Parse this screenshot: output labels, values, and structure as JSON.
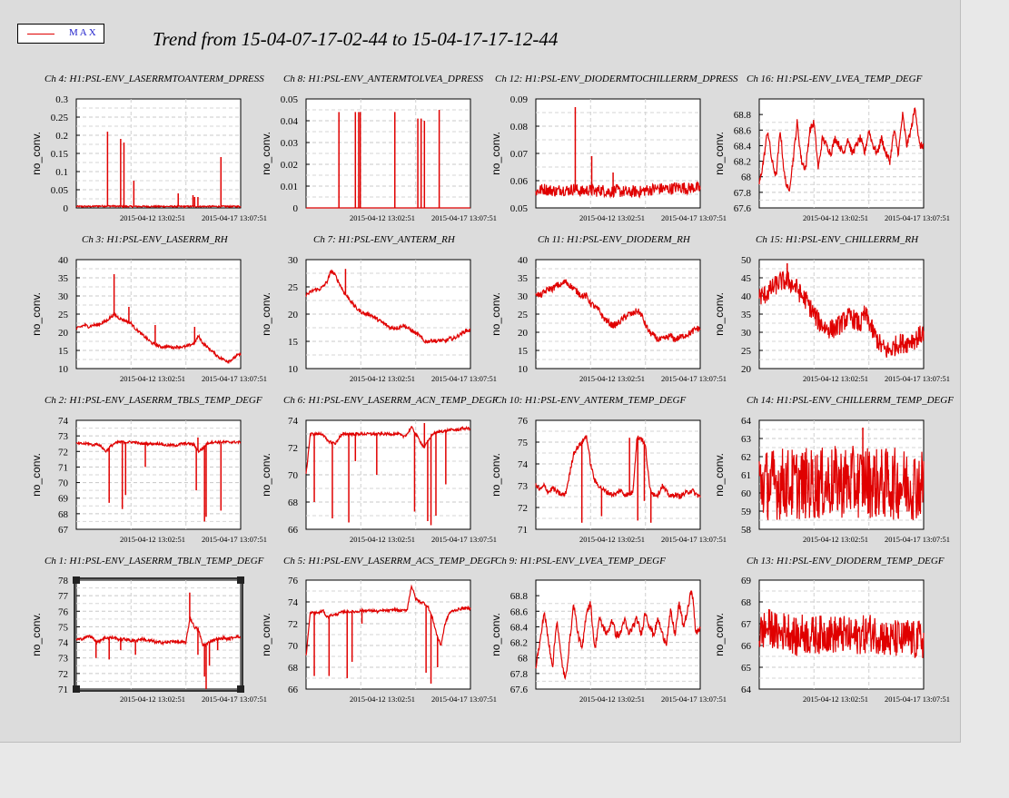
{
  "legend": {
    "label": "MAX",
    "color": "#e00000"
  },
  "title": "Trend from 15-04-07-17-02-44 to 15-04-17-17-12-44",
  "series_color": "#e00000",
  "chart_data": [
    {
      "type": "line",
      "title": "Ch 4: H1:PSL-ENV_LASERRMTOANTERM_DPRESS",
      "ylabel": "no_conv.",
      "ylim": [
        0,
        0.3
      ],
      "yticks": [
        "0",
        "0.05",
        "0.1",
        "0.15",
        "0.2",
        "0.25",
        "0.3"
      ],
      "xticks": [
        "2015-04-12 13:02:51",
        "2015-04-17 13:07:51"
      ],
      "profile": [
        0.004,
        0.004,
        0.004,
        0.004,
        0.004,
        0.005,
        0.005,
        0.005,
        0.005,
        0.005,
        0.004,
        0.004,
        0.004,
        0.004,
        0.004,
        0.004,
        0.004,
        0.004,
        0.004,
        0.004,
        0.004,
        0.004,
        0.004,
        0.004,
        0.004,
        0.004,
        0.004,
        0.004,
        0.004,
        0.004,
        0.004,
        0.004,
        0.004,
        0.004,
        0.004,
        0.004,
        0.004,
        0.004,
        0.004,
        0.004
      ],
      "spikes": [
        [
          0.19,
          0.21
        ],
        [
          0.27,
          0.19
        ],
        [
          0.29,
          0.18
        ],
        [
          0.35,
          0.075
        ],
        [
          0.88,
          0.14
        ],
        [
          0.71,
          0.035
        ],
        [
          0.72,
          0.03
        ],
        [
          0.74,
          0.03
        ],
        [
          0.62,
          0.04
        ]
      ],
      "noise": 0.002
    },
    {
      "type": "line",
      "title": "Ch 8: H1:PSL-ENV_ANTERMTOLVEA_DPRESS",
      "ylabel": "no_conv.",
      "ylim": [
        0,
        0.05
      ],
      "yticks": [
        "0",
        "0.01",
        "0.02",
        "0.03",
        "0.04",
        "0.05"
      ],
      "xticks": [
        "2015-04-12 13:02:51",
        "2015-04-17 13:07:51"
      ],
      "profile": [
        0,
        0,
        0,
        0,
        0,
        0,
        0,
        0,
        0,
        0,
        0,
        0,
        0,
        0,
        0,
        0,
        0,
        0,
        0,
        0,
        0,
        0,
        0,
        0,
        0,
        0,
        0,
        0,
        0,
        0,
        0,
        0,
        0,
        0,
        0,
        0,
        0,
        0,
        0,
        0
      ],
      "spikes": [
        [
          0.2,
          0.044
        ],
        [
          0.3,
          0.044
        ],
        [
          0.32,
          0.044
        ],
        [
          0.33,
          0.044
        ],
        [
          0.54,
          0.044
        ],
        [
          0.68,
          0.041
        ],
        [
          0.7,
          0.041
        ],
        [
          0.72,
          0.04
        ],
        [
          0.81,
          0.045
        ]
      ],
      "noise": 0
    },
    {
      "type": "line",
      "title": "Ch 12: H1:PSL-ENV_DIODERMTOCHILLERRM_DPRESS",
      "ylabel": "no_conv.",
      "ylim": [
        0.05,
        0.09
      ],
      "yticks": [
        "0.05",
        "0.06",
        "0.07",
        "0.08",
        "0.09"
      ],
      "xticks": [
        "2015-04-12 13:02:51",
        "2015-04-17 13:07:51"
      ],
      "profile": [
        0.056,
        0.0565,
        0.057,
        0.0565,
        0.0565,
        0.056,
        0.057,
        0.0565,
        0.0565,
        0.057,
        0.0565,
        0.056,
        0.0565,
        0.0565,
        0.056,
        0.0565,
        0.0565,
        0.056,
        0.056,
        0.0565,
        0.056,
        0.056,
        0.0555,
        0.056,
        0.056,
        0.056,
        0.0565,
        0.0565,
        0.057,
        0.057,
        0.057,
        0.057,
        0.057,
        0.0575,
        0.0575,
        0.0575,
        0.057,
        0.0575,
        0.0575,
        0.057
      ],
      "spikes": [
        [
          0.24,
          0.087
        ],
        [
          0.34,
          0.069
        ],
        [
          0.47,
          0.063
        ]
      ],
      "noise": 0.0022
    },
    {
      "type": "line",
      "title": "Ch 16: H1:PSL-ENV_LVEA_TEMP_DEGF",
      "ylabel": "no_conv.",
      "ylim": [
        67.6,
        69
      ],
      "yticks": [
        "67.6",
        "67.8",
        "68",
        "68.2",
        "68.4",
        "68.6",
        "68.8"
      ],
      "xticks": [
        "2015-04-12 13:02:51",
        "2015-04-17 13:07:51"
      ],
      "profile": [
        67.9,
        68.2,
        68.6,
        68.2,
        68.0,
        68.6,
        68.0,
        67.8,
        68.2,
        68.7,
        68.2,
        68.1,
        68.6,
        68.7,
        68.1,
        68.5,
        68.4,
        68.3,
        68.5,
        68.4,
        68.3,
        68.5,
        68.3,
        68.4,
        68.5,
        68.3,
        68.6,
        68.4,
        68.3,
        68.5,
        68.3,
        68.2,
        68.6,
        68.3,
        68.8,
        68.4,
        68.6,
        68.9,
        68.4,
        68.4
      ],
      "spikes": [],
      "noise": 0.05
    },
    {
      "type": "line",
      "title": "Ch 3: H1:PSL-ENV_LASERRM_RH",
      "ylabel": "no_conv.",
      "ylim": [
        10,
        40
      ],
      "yticks": [
        "10",
        "15",
        "20",
        "25",
        "30",
        "35",
        "40"
      ],
      "xticks": [
        "2015-04-12 13:02:51",
        "2015-04-17 13:07:51"
      ],
      "profile": [
        21,
        21.5,
        22,
        21.5,
        22,
        22,
        22.5,
        23,
        24,
        25,
        24,
        23.5,
        23,
        22.5,
        21,
        20,
        19,
        18,
        17,
        16.5,
        16,
        16,
        16,
        15.8,
        16,
        16,
        16,
        16.5,
        17,
        19,
        17,
        16,
        15,
        14,
        13,
        12.5,
        12,
        12.5,
        13.5,
        14
      ],
      "spikes": [
        [
          0.23,
          36
        ],
        [
          0.32,
          27
        ],
        [
          0.48,
          22
        ],
        [
          0.72,
          21.5
        ]
      ],
      "noise": 0.4
    },
    {
      "type": "line",
      "title": "Ch 7: H1:PSL-ENV_ANTERM_RH",
      "ylabel": "no_conv.",
      "ylim": [
        10,
        30
      ],
      "yticks": [
        "10",
        "15",
        "20",
        "25",
        "30"
      ],
      "xticks": [
        "2015-04-12 13:02:51",
        "2015-04-17 13:07:51"
      ],
      "profile": [
        23.5,
        24,
        24.5,
        24.5,
        25,
        26,
        28,
        27,
        25.5,
        24,
        23,
        22,
        21,
        20.5,
        20,
        20,
        19.5,
        19,
        18.5,
        18,
        17.5,
        17.5,
        17.5,
        18,
        17.5,
        17,
        16.5,
        16,
        15,
        15,
        15.2,
        15,
        15.2,
        15,
        15.5,
        15.5,
        16,
        16.5,
        17,
        17
      ],
      "spikes": [
        [
          0.24,
          28.3
        ]
      ],
      "noise": 0.35
    },
    {
      "type": "line",
      "title": "Ch 11: H1:PSL-ENV_DIODERM_RH",
      "ylabel": "no_conv.",
      "ylim": [
        10,
        40
      ],
      "yticks": [
        "10",
        "15",
        "20",
        "25",
        "30",
        "35",
        "40"
      ],
      "xticks": [
        "2015-04-12 13:02:51",
        "2015-04-17 13:07:51"
      ],
      "profile": [
        31,
        30,
        31,
        32,
        32,
        33,
        33,
        34,
        33,
        32,
        31,
        30,
        30,
        28,
        27,
        26,
        24,
        23,
        22,
        22,
        23,
        24,
        25,
        25,
        26,
        25,
        22,
        20,
        19,
        18,
        18,
        18.5,
        19,
        18,
        18.5,
        19,
        19.5,
        20,
        21,
        21
      ],
      "spikes": [],
      "noise": 0.9
    },
    {
      "type": "line",
      "title": "Ch 15: H1:PSL-ENV_CHILLERRM_RH",
      "ylabel": "no_conv.",
      "ylim": [
        20,
        50
      ],
      "yticks": [
        "20",
        "25",
        "30",
        "35",
        "40",
        "45",
        "50"
      ],
      "xticks": [
        "2015-04-12 13:02:51",
        "2015-04-17 13:07:51"
      ],
      "profile": [
        40,
        40,
        41,
        42,
        43,
        44,
        44,
        44,
        43,
        42,
        40,
        39,
        37,
        35,
        33,
        32,
        31,
        31,
        31,
        32,
        33,
        34,
        34,
        33,
        32,
        35,
        33,
        30,
        28,
        26,
        25,
        25,
        26,
        27,
        27,
        27,
        28,
        28,
        29,
        30
      ],
      "spikes": [
        [
          0.17,
          49
        ]
      ],
      "noise": 2.8
    },
    {
      "type": "line",
      "title": "Ch 2: H1:PSL-ENV_LASERRM_TBLS_TEMP_DEGF",
      "ylabel": "no_conv.",
      "ylim": [
        67,
        74
      ],
      "yticks": [
        "67",
        "68",
        "69",
        "70",
        "71",
        "72",
        "73",
        "74"
      ],
      "xticks": [
        "2015-04-12 13:02:51",
        "2015-04-17 13:07:51"
      ],
      "profile": [
        72.5,
        72.5,
        72.5,
        72.5,
        72.4,
        72.5,
        72.3,
        72.0,
        72.3,
        72.5,
        72.6,
        72.6,
        72.6,
        72.6,
        72.6,
        72.5,
        72.5,
        72.5,
        72.5,
        72.5,
        72.5,
        72.4,
        72.4,
        72.4,
        72.4,
        72.5,
        72.5,
        72.5,
        72.4,
        72.0,
        72.2,
        72.5,
        72.6,
        72.6,
        72.6,
        72.6,
        72.6,
        72.6,
        72.6,
        72.6
      ],
      "spikes": [
        [
          0.2,
          68.7
        ],
        [
          0.28,
          68.3
        ],
        [
          0.3,
          69.2
        ],
        [
          0.42,
          71.0
        ],
        [
          0.73,
          69.5
        ],
        [
          0.78,
          67.5
        ],
        [
          0.79,
          67.8
        ],
        [
          0.88,
          68.2
        ],
        [
          0.74,
          72.9
        ]
      ],
      "noise": 0.08
    },
    {
      "type": "line",
      "title": "Ch 6: H1:PSL-ENV_LASERRM_ACN_TEMP_DEGF",
      "ylabel": "no_conv.",
      "ylim": [
        66,
        74
      ],
      "yticks": [
        "66",
        "68",
        "70",
        "72",
        "74"
      ],
      "xticks": [
        "2015-04-12 13:02:51",
        "2015-04-17 13:07:51"
      ],
      "profile": [
        70,
        73,
        73,
        73,
        73,
        72.5,
        72.4,
        72.3,
        72.8,
        73,
        73,
        73,
        73,
        73,
        73,
        73,
        73,
        73,
        73,
        73,
        73,
        73,
        73,
        72.8,
        73,
        73.5,
        73,
        72.5,
        72,
        72.5,
        73,
        73.1,
        73.2,
        73.2,
        73.3,
        73.3,
        73.3,
        73.4,
        73.4,
        73.4
      ],
      "spikes": [
        [
          0.05,
          68
        ],
        [
          0.16,
          66.8
        ],
        [
          0.26,
          66.5
        ],
        [
          0.3,
          71
        ],
        [
          0.43,
          70
        ],
        [
          0.66,
          67.3
        ],
        [
          0.74,
          66.6
        ],
        [
          0.76,
          66.3
        ],
        [
          0.79,
          67
        ],
        [
          0.85,
          69.3
        ],
        [
          0.72,
          73.8
        ]
      ],
      "noise": 0.1
    },
    {
      "type": "line",
      "title": "Ch 10: H1:PSL-ENV_ANTERM_TEMP_DEGF",
      "ylabel": "no_conv.",
      "ylim": [
        71,
        76
      ],
      "yticks": [
        "71",
        "72",
        "73",
        "74",
        "75",
        "76"
      ],
      "xticks": [
        "2015-04-12 13:02:51",
        "2015-04-17 13:07:51"
      ],
      "profile": [
        73,
        72.8,
        73,
        72.7,
        72.9,
        72.7,
        72.6,
        72.6,
        73.5,
        74.5,
        74.8,
        75.0,
        75.3,
        74,
        73.2,
        73,
        72.8,
        72.7,
        72.6,
        72.6,
        72.8,
        72.6,
        72.6,
        72.7,
        75.2,
        75.2,
        74.8,
        72.9,
        72.6,
        72.6,
        73,
        72.7,
        72.5,
        72.6,
        72.5,
        72.6,
        72.7,
        72.8,
        72.6,
        72.5
      ],
      "spikes": [
        [
          0.28,
          71.3
        ],
        [
          0.4,
          71.6
        ],
        [
          0.57,
          75.2
        ],
        [
          0.62,
          71.4
        ],
        [
          0.66,
          72.3
        ],
        [
          0.7,
          71.3
        ],
        [
          0.72,
          72.5
        ]
      ],
      "noise": 0.12
    },
    {
      "type": "line",
      "title": "Ch 14: H1:PSL-ENV_CHILLERRM_TEMP_DEGF",
      "ylabel": "no_conv.",
      "ylim": [
        58,
        64
      ],
      "yticks": [
        "58",
        "59",
        "60",
        "61",
        "62",
        "63",
        "64"
      ],
      "xticks": [
        "2015-04-12 13:02:51",
        "2015-04-17 13:07:51"
      ],
      "profile": [
        60.5,
        60.5,
        60.5,
        60.5,
        60.5,
        60.5,
        60.6,
        60.5,
        60.5,
        60.5,
        60.5,
        60.5,
        60.5,
        60.5,
        60.5,
        60.5,
        60.5,
        60.6,
        60.6,
        60.6,
        60.6,
        60.6,
        60.6,
        60.6,
        60.6,
        60.8,
        60.6,
        60.6,
        60.5,
        60.5,
        60.5,
        60.5,
        60.5,
        60.5,
        60.5,
        60.5,
        60.5,
        60.5,
        60.5,
        60.5
      ],
      "spikes": [
        [
          0.63,
          63.6
        ]
      ],
      "noise": 2.0
    },
    {
      "type": "line",
      "title": "Ch 1: H1:PSL-ENV_LASERRM_TBLN_TEMP_DEGF",
      "ylabel": "no_conv.",
      "ylim": [
        71,
        78
      ],
      "yticks": [
        "71",
        "72",
        "73",
        "74",
        "75",
        "76",
        "77",
        "78"
      ],
      "xticks": [
        "2015-04-12 13:02:51",
        "2015-04-17 13:07:51"
      ],
      "profile": [
        74.2,
        74.2,
        74.3,
        74.4,
        74.3,
        74.0,
        74.2,
        74.3,
        74.3,
        74.3,
        74.2,
        74.2,
        74.2,
        74.1,
        74.1,
        74.2,
        74.2,
        74.1,
        74.1,
        74.0,
        74.0,
        74.0,
        74.0,
        74.1,
        74.0,
        74.0,
        74.0,
        75.6,
        75.0,
        74.8,
        73.8,
        73.9,
        74.1,
        74.2,
        74.2,
        74.3,
        74.2,
        74.3,
        74.4,
        74.3
      ],
      "spikes": [
        [
          0.12,
          73.0
        ],
        [
          0.2,
          72.9
        ],
        [
          0.27,
          73.5
        ],
        [
          0.36,
          73.2
        ],
        [
          0.69,
          77.2
        ],
        [
          0.74,
          73.2
        ],
        [
          0.78,
          71.8
        ],
        [
          0.79,
          71.0
        ],
        [
          0.81,
          72.5
        ],
        [
          0.86,
          73.5
        ]
      ],
      "noise": 0.1
    },
    {
      "type": "line",
      "title": "Ch 5: H1:PSL-ENV_LASERRM_ACS_TEMP_DEGF",
      "ylabel": "no_conv.",
      "ylim": [
        66,
        76
      ],
      "yticks": [
        "66",
        "68",
        "70",
        "72",
        "74",
        "76"
      ],
      "xticks": [
        "2015-04-12 13:02:51",
        "2015-04-17 13:07:51"
      ],
      "profile": [
        69,
        73,
        73,
        73,
        73.2,
        72.6,
        72.8,
        72.8,
        73,
        73.1,
        73.1,
        73.1,
        73.1,
        73.2,
        73.2,
        73.2,
        73.2,
        73.1,
        73.2,
        73.2,
        73.2,
        73.3,
        73.2,
        73.2,
        73.3,
        75.5,
        74.3,
        74,
        73.9,
        73.5,
        72.5,
        71,
        70,
        72,
        73,
        73.2,
        73.3,
        73.4,
        73.4,
        73.4
      ],
      "spikes": [
        [
          0.05,
          67.2
        ],
        [
          0.14,
          67.2
        ],
        [
          0.25,
          67
        ],
        [
          0.28,
          68.5
        ],
        [
          0.34,
          72
        ],
        [
          0.73,
          67.5
        ],
        [
          0.76,
          66.5
        ],
        [
          0.8,
          68
        ]
      ],
      "noise": 0.12
    },
    {
      "type": "line",
      "title": "Ch 9: H1:PSL-ENV_LVEA_TEMP_DEGF",
      "ylabel": "no_conv.",
      "ylim": [
        67.6,
        69
      ],
      "yticks": [
        "67.6",
        "67.8",
        "68",
        "68.2",
        "68.4",
        "68.6",
        "68.8"
      ],
      "xticks": [
        "2015-04-12 13:02:51",
        "2015-04-17 13:07:51"
      ],
      "profile": [
        67.9,
        68.2,
        68.6,
        68.2,
        67.9,
        68.5,
        68.0,
        67.7,
        68.2,
        68.7,
        68.3,
        68.1,
        68.6,
        68.7,
        68.1,
        68.5,
        68.4,
        68.3,
        68.5,
        68.3,
        68.3,
        68.5,
        68.3,
        68.4,
        68.5,
        68.3,
        68.6,
        68.4,
        68.3,
        68.5,
        68.3,
        68.2,
        68.6,
        68.3,
        68.7,
        68.4,
        68.6,
        68.9,
        68.3,
        68.4
      ],
      "spikes": [],
      "noise": 0.05
    },
    {
      "type": "line",
      "title": "Ch 13: H1:PSL-ENV_DIODERM_TEMP_DEGF",
      "ylabel": "no_conv.",
      "ylim": [
        64,
        69
      ],
      "yticks": [
        "64",
        "65",
        "66",
        "67",
        "68",
        "69"
      ],
      "xticks": [
        "2015-04-12 13:02:51",
        "2015-04-17 13:07:51"
      ],
      "profile": [
        66.5,
        66.7,
        66.8,
        66.8,
        66.6,
        66.5,
        66.7,
        66.7,
        66.5,
        66.3,
        66.6,
        66.5,
        66.4,
        66.5,
        66.5,
        66.5,
        66.6,
        66.5,
        66.5,
        66.5,
        66.5,
        66.4,
        66.4,
        66.4,
        66.5,
        66.5,
        66.6,
        66.6,
        66.5,
        66.5,
        66.3,
        66.2,
        66.3,
        66.3,
        66.2,
        66.4,
        66.3,
        66.2,
        66.3,
        66.2
      ],
      "spikes": [],
      "noise": 0.9
    }
  ]
}
